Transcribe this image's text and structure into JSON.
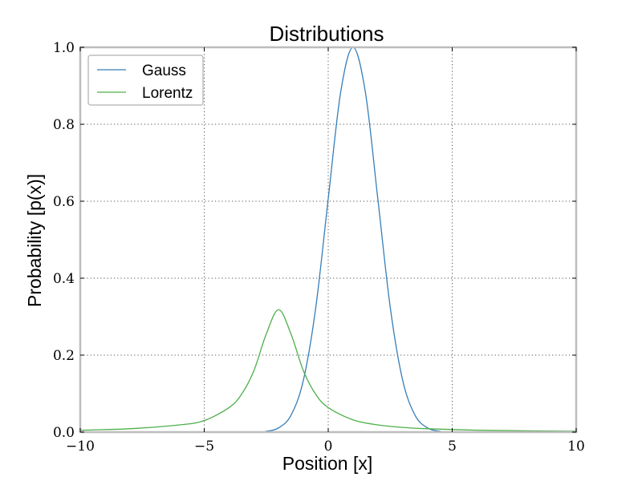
{
  "chart_data": {
    "type": "line",
    "title": "Distributions",
    "xlabel": "Position [x]",
    "ylabel": "Probability [p(x)]",
    "xlim": [
      -10,
      10
    ],
    "ylim": [
      0,
      1.0
    ],
    "xticks": [
      -10,
      -5,
      0,
      5,
      10
    ],
    "xtick_labels": [
      "−10",
      "−5",
      "0",
      "5",
      "10"
    ],
    "yticks": [
      0,
      0.2,
      0.4,
      0.6,
      0.8,
      1.0
    ],
    "ytick_labels": [
      "0.0",
      "0.2",
      "0.4",
      "0.6",
      "0.8",
      "1.0"
    ],
    "grid": true,
    "legend_position": "top-left",
    "series": [
      {
        "name": "Gauss",
        "color": "#377eb8",
        "x": [
          -10,
          -3,
          -2.5,
          -2,
          -1.5,
          -1,
          -0.5,
          0,
          0.5,
          1,
          1.5,
          2,
          2.5,
          3,
          3.5,
          4,
          4.5,
          5,
          10
        ],
        "y": [
          0,
          0.0003,
          0.0022,
          0.0111,
          0.0439,
          0.1353,
          0.3247,
          0.6065,
          0.8825,
          1.0,
          0.8825,
          0.6065,
          0.3247,
          0.1353,
          0.0439,
          0.0111,
          0.0022,
          0.0003,
          0
        ]
      },
      {
        "name": "Lorentz",
        "color": "#4daf4a",
        "x": [
          -10,
          -8,
          -6,
          -5,
          -4,
          -3.5,
          -3,
          -2.5,
          -2,
          -1.5,
          -1,
          -0.5,
          0,
          1,
          2,
          3,
          4,
          6,
          8,
          10
        ],
        "y": [
          0.0049,
          0.0087,
          0.0187,
          0.0299,
          0.0637,
          0.0979,
          0.1592,
          0.2546,
          0.3183,
          0.2546,
          0.1592,
          0.0979,
          0.0637,
          0.0318,
          0.0187,
          0.0122,
          0.0087,
          0.005,
          0.0032,
          0.0023
        ]
      }
    ]
  }
}
